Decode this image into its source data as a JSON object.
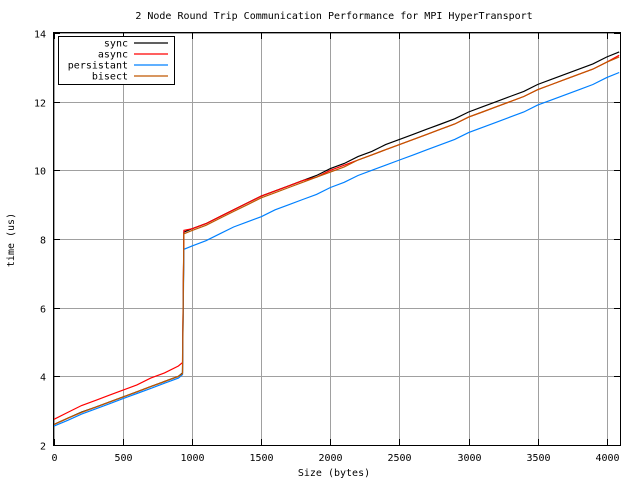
{
  "chart_data": {
    "type": "line",
    "title": "2 Node Round Trip Communication Performance for MPI HyperTransport",
    "xlabel": "Size (bytes)",
    "ylabel": "time (us)",
    "xlim": [
      0,
      4096
    ],
    "ylim": [
      2,
      14
    ],
    "x_ticks": [
      0,
      500,
      1000,
      1500,
      2000,
      2500,
      3000,
      3500,
      4000
    ],
    "y_ticks": [
      2,
      4,
      6,
      8,
      10,
      12,
      14
    ],
    "grid": true,
    "legend_position": "top-left",
    "x": [
      0,
      100,
      200,
      300,
      400,
      500,
      600,
      700,
      800,
      900,
      930,
      940,
      1000,
      1100,
      1200,
      1300,
      1400,
      1500,
      1600,
      1700,
      1800,
      1900,
      2000,
      2100,
      2200,
      2300,
      2400,
      2500,
      2600,
      2700,
      2800,
      2900,
      3000,
      3100,
      3200,
      3300,
      3400,
      3500,
      3600,
      3700,
      3800,
      3900,
      4000,
      4090
    ],
    "series": [
      {
        "name": "sync",
        "color": "#000000",
        "values": [
          2.6,
          2.78,
          2.96,
          3.1,
          3.25,
          3.4,
          3.55,
          3.7,
          3.85,
          4.0,
          4.1,
          8.2,
          8.3,
          8.45,
          8.65,
          8.85,
          9.05,
          9.25,
          9.4,
          9.55,
          9.7,
          9.85,
          10.05,
          10.2,
          10.4,
          10.55,
          10.75,
          10.9,
          11.05,
          11.2,
          11.35,
          11.5,
          11.7,
          11.85,
          12.0,
          12.15,
          12.3,
          12.5,
          12.65,
          12.8,
          12.95,
          13.1,
          13.3,
          13.45
        ]
      },
      {
        "name": "async",
        "color": "#ff0000",
        "values": [
          2.75,
          2.95,
          3.15,
          3.3,
          3.45,
          3.6,
          3.75,
          3.95,
          4.1,
          4.3,
          4.4,
          8.25,
          8.3,
          8.45,
          8.65,
          8.85,
          9.05,
          9.25,
          9.4,
          9.55,
          9.7,
          9.8,
          10.0,
          10.15,
          10.3,
          10.45,
          10.6,
          10.75,
          10.9,
          11.05,
          11.2,
          11.35,
          11.55,
          11.7,
          11.85,
          12.0,
          12.15,
          12.35,
          12.5,
          12.65,
          12.8,
          12.95,
          13.15,
          13.35
        ]
      },
      {
        "name": "persistant",
        "color": "#0080ff",
        "values": [
          2.55,
          2.72,
          2.9,
          3.05,
          3.2,
          3.35,
          3.5,
          3.65,
          3.8,
          3.95,
          4.05,
          7.7,
          7.8,
          7.95,
          8.15,
          8.35,
          8.5,
          8.65,
          8.85,
          9.0,
          9.15,
          9.3,
          9.5,
          9.65,
          9.85,
          10.0,
          10.15,
          10.3,
          10.45,
          10.6,
          10.75,
          10.9,
          11.1,
          11.25,
          11.4,
          11.55,
          11.7,
          11.9,
          12.05,
          12.2,
          12.35,
          12.5,
          12.7,
          12.85
        ]
      },
      {
        "name": "bisect",
        "color": "#c05800",
        "values": [
          2.6,
          2.78,
          2.95,
          3.1,
          3.25,
          3.4,
          3.55,
          3.7,
          3.85,
          4.0,
          4.08,
          8.15,
          8.25,
          8.4,
          8.6,
          8.8,
          9.0,
          9.2,
          9.35,
          9.5,
          9.65,
          9.8,
          9.95,
          10.1,
          10.3,
          10.45,
          10.6,
          10.75,
          10.9,
          11.05,
          11.2,
          11.35,
          11.55,
          11.7,
          11.85,
          12.0,
          12.15,
          12.35,
          12.5,
          12.65,
          12.8,
          12.95,
          13.15,
          13.3
        ]
      }
    ]
  }
}
